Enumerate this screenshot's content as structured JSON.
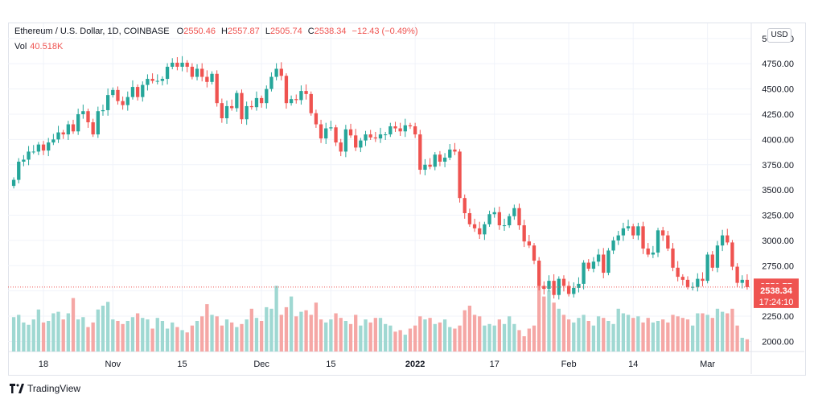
{
  "header": {
    "symbol": "Ethereum / U.S. Dollar, 1D, COINBASE",
    "open_label": "O",
    "open": "2550.46",
    "high_label": "H",
    "high": "2557.87",
    "low_label": "L",
    "low": "2505.74",
    "close_label": "C",
    "close": "2538.34",
    "change": "−12.43 (−0.49%)",
    "vol_label": "Vol",
    "vol": "40.518K"
  },
  "currency_label": "USD",
  "price_tags": {
    "open": "2550.77",
    "close": "2538.34",
    "countdown": "17:24:10"
  },
  "footer": {
    "brand": "TradingView"
  },
  "colors": {
    "up": "#26a69a",
    "down": "#ef5350",
    "up_vol": "#9fd8d2",
    "down_vol": "#f5a7a5",
    "grid": "#f0f3fa",
    "axis_text": "#131722"
  },
  "chart_data": {
    "type": "candlestick",
    "y_ticks": [
      "5000.00",
      "4750.00",
      "4500.00",
      "4250.00",
      "4000.00",
      "3750.00",
      "3500.00",
      "3250.00",
      "3000.00",
      "2750.00",
      "2500.00",
      "2250.00",
      "2000.00"
    ],
    "ylim": [
      1900,
      5150
    ],
    "x_ticks": [
      {
        "label": "18",
        "index": 6
      },
      {
        "label": "Nov",
        "index": 20
      },
      {
        "label": "15",
        "index": 34
      },
      {
        "label": "Dec",
        "index": 50
      },
      {
        "label": "15",
        "index": 64
      },
      {
        "label": "2022",
        "index": 81
      },
      {
        "label": "17",
        "index": 97
      },
      {
        "label": "Feb",
        "index": 112
      },
      {
        "label": "14",
        "index": 125
      },
      {
        "label": "Mar",
        "index": 140
      }
    ],
    "closes": [
      3600,
      3780,
      3800,
      3880,
      3880,
      3950,
      3890,
      3970,
      4000,
      4070,
      4050,
      4150,
      4080,
      4250,
      4280,
      4170,
      4050,
      4280,
      4290,
      4440,
      4490,
      4380,
      4340,
      4420,
      4520,
      4420,
      4540,
      4600,
      4580,
      4580,
      4600,
      4720,
      4760,
      4720,
      4760,
      4720,
      4620,
      4700,
      4620,
      4570,
      4650,
      4360,
      4210,
      4330,
      4310,
      4460,
      4200,
      4330,
      4320,
      4410,
      4360,
      4500,
      4620,
      4700,
      4630,
      4360,
      4400,
      4390,
      4480,
      4450,
      4260,
      4150,
      4010,
      4110,
      4120,
      3970,
      3880,
      4100,
      4040,
      3920,
      3990,
      4050,
      4020,
      4010,
      4050,
      4050,
      4130,
      4110,
      4080,
      4140,
      4130,
      4050,
      3700,
      3750,
      3730,
      3850,
      3780,
      3820,
      3900,
      3880,
      3420,
      3270,
      3160,
      3120,
      3060,
      3160,
      3260,
      3280,
      3150,
      3150,
      3240,
      3320,
      3150,
      2990,
      2950,
      2800,
      2550,
      2520,
      2600,
      2460,
      2620,
      2550,
      2470,
      2530,
      2570,
      2780,
      2720,
      2790,
      2860,
      2680,
      2900,
      3000,
      3050,
      3120,
      3140,
      3050,
      3140,
      2920,
      2860,
      2880,
      3100,
      3050,
      2920,
      2730,
      2640,
      2610,
      2540,
      2540,
      2620,
      2600,
      2860,
      2730,
      2950,
      3050,
      2980,
      2740,
      2580,
      2610,
      2538
    ],
    "volume_scale_note": "volume bars shown relative",
    "volumes": [
      0.45,
      0.48,
      0.38,
      0.35,
      0.42,
      0.55,
      0.38,
      0.4,
      0.5,
      0.52,
      0.42,
      0.5,
      0.7,
      0.42,
      0.45,
      0.32,
      0.38,
      0.55,
      0.6,
      0.65,
      0.42,
      0.4,
      0.36,
      0.4,
      0.45,
      0.5,
      0.44,
      0.42,
      0.3,
      0.44,
      0.4,
      0.3,
      0.38,
      0.32,
      0.28,
      0.25,
      0.34,
      0.4,
      0.46,
      0.62,
      0.48,
      0.46,
      0.34,
      0.42,
      0.38,
      0.32,
      0.36,
      0.42,
      0.56,
      0.44,
      0.4,
      0.58,
      0.56,
      0.86,
      0.48,
      0.58,
      0.72,
      0.46,
      0.52,
      0.54,
      0.48,
      0.64,
      0.42,
      0.38,
      0.42,
      0.5,
      0.44,
      0.4,
      0.36,
      0.48,
      0.34,
      0.42,
      0.38,
      0.44,
      0.44,
      0.36,
      0.34,
      0.26,
      0.28,
      0.22,
      0.3,
      0.34,
      0.46,
      0.42,
      0.44,
      0.36,
      0.38,
      0.42,
      0.32,
      0.3,
      0.34,
      0.54,
      0.6,
      0.48,
      0.46,
      0.34,
      0.36,
      0.34,
      0.42,
      0.36,
      0.46,
      0.36,
      0.28,
      0.2,
      0.3,
      0.34,
      0.94,
      0.72,
      0.8,
      0.64,
      0.56,
      0.48,
      0.42,
      0.38,
      0.44,
      0.48,
      0.4,
      0.34,
      0.46,
      0.44,
      0.4,
      0.36,
      0.56,
      0.5,
      0.48,
      0.44,
      0.46,
      0.38,
      0.44,
      0.38,
      0.4,
      0.42,
      0.38,
      0.48,
      0.46,
      0.44,
      0.42,
      0.34,
      0.5,
      0.5,
      0.48,
      0.44,
      0.56,
      0.52,
      0.5,
      0.56,
      0.34,
      0.18,
      0.16
    ]
  }
}
